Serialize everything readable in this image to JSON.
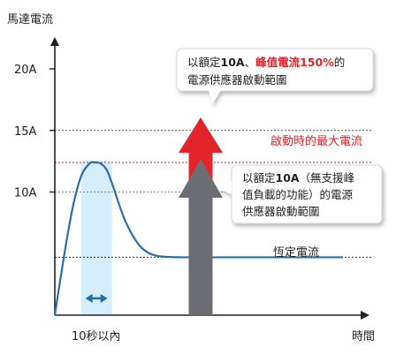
{
  "chart_data": {
    "type": "line",
    "ylabel": "馬達電流",
    "xlabel": "時間",
    "ytick_labels": [
      "20A",
      "15A",
      "10A"
    ],
    "yticks": [
      20,
      15,
      10
    ],
    "ylim": [
      0,
      22
    ],
    "xlim": [
      0,
      100
    ],
    "x_annotation": "10秒以內",
    "hlines": [
      {
        "value": 15,
        "style": "dotted",
        "color": "#555555"
      },
      {
        "value": 12.4,
        "style": "dotted",
        "color": "#d9262c",
        "label": "啟動時的最大電流"
      },
      {
        "value": 4.7,
        "style": "dotted",
        "color": "#333333",
        "label": "恆定電流"
      }
    ],
    "series": [
      {
        "x": [
          0,
          3,
          6,
          9,
          12,
          14,
          16,
          18,
          20,
          22,
          24,
          26,
          28,
          30,
          33,
          36,
          40,
          45,
          50,
          60,
          70,
          80,
          100
        ],
        "y": [
          0,
          4.5,
          8.5,
          11.2,
          12.3,
          12.4,
          12.3,
          11.8,
          10.6,
          9.2,
          7.9,
          6.9,
          6.1,
          5.5,
          5.0,
          4.8,
          4.72,
          4.7,
          4.7,
          4.7,
          4.7,
          4.7,
          4.7
        ],
        "color": "#2c6fa5"
      }
    ],
    "window_x": [
      10,
      18
    ]
  },
  "arrows": {
    "red": {
      "color": "#e3242b",
      "callout_lines": [
        [
          "以額定",
          "10A",
          "、",
          "峰值電流150%",
          "的"
        ],
        [
          "電源供應器啟動範圍"
        ]
      ]
    },
    "gray": {
      "color": "#6b6d72",
      "callout_lines": [
        [
          "以額定",
          "10A",
          "（無支援峰"
        ],
        [
          "值負載的功能）的電源"
        ],
        [
          "供應器啟動範圍"
        ]
      ]
    }
  }
}
